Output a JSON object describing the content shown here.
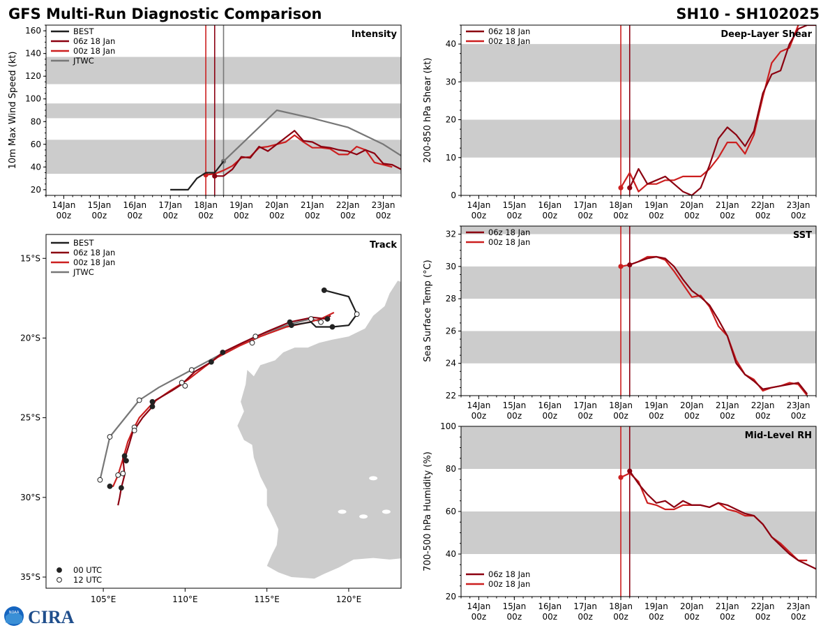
{
  "header": {
    "title": "GFS Multi-Run Diagnostic Comparison",
    "storm_id": "SH10 - SH102025"
  },
  "colors": {
    "best": "#1f1f1f",
    "run06": "#8b0010",
    "run00": "#cc1f1f",
    "jtwc": "#777777",
    "band": "#cccccc"
  },
  "time_axis": {
    "ticks": [
      "14Jan\n00z",
      "15Jan\n00z",
      "16Jan\n00z",
      "17Jan\n00z",
      "18Jan\n00z",
      "19Jan\n00z",
      "20Jan\n00z",
      "21Jan\n00z",
      "22Jan\n00z",
      "23Jan\n00z"
    ],
    "range_days": [
      -0.5,
      9.5
    ]
  },
  "logo": {
    "text": "CIRA",
    "noaa": "NOAA"
  },
  "chart_data": [
    {
      "id": "intensity",
      "type": "line",
      "title": "Intensity",
      "ylabel": "10m Max Wind Speed (kt)",
      "ylim": [
        15,
        165
      ],
      "yticks": [
        20,
        40,
        60,
        80,
        100,
        120,
        140,
        160
      ],
      "bands": [
        [
          34,
          64
        ],
        [
          83,
          96
        ],
        [
          113,
          137
        ]
      ],
      "vlines": [
        {
          "x": 4.0,
          "series": "00z 18 Jan"
        },
        {
          "x": 4.25,
          "series": "06z 18 Jan"
        },
        {
          "x": 4.5,
          "series": "JTWC"
        }
      ],
      "legend": [
        "BEST",
        "06z 18 Jan",
        "00z 18 Jan",
        "JTWC"
      ],
      "series": [
        {
          "name": "BEST",
          "color": "best",
          "x": [
            3,
            3.25,
            3.5,
            3.75,
            4,
            4.25,
            4.5
          ],
          "y": [
            20,
            20,
            20,
            30,
            35,
            35,
            45
          ]
        },
        {
          "name": "06z 18 Jan",
          "color": "run06",
          "x": [
            4.25,
            4.5,
            4.75,
            5,
            5.25,
            5.5,
            5.75,
            6,
            6.25,
            6.5,
            6.75,
            7,
            7.25,
            7.5,
            7.75,
            8,
            8.25,
            8.5,
            8.75,
            9,
            9.25,
            9.5
          ],
          "y": [
            32,
            32,
            38,
            49,
            48,
            58,
            54,
            60,
            66,
            72,
            63,
            62,
            58,
            57,
            55,
            54,
            51,
            55,
            52,
            43,
            42,
            38
          ],
          "marker0": true
        },
        {
          "name": "00z 18 Jan",
          "color": "run00",
          "x": [
            4,
            4.25,
            4.5,
            4.75,
            5,
            5.25,
            5.5,
            5.75,
            6,
            6.25,
            6.5,
            6.75,
            7,
            7.25,
            7.5,
            7.75,
            8,
            8.25,
            8.5,
            8.75,
            9,
            9.25
          ],
          "y": [
            33,
            34,
            37,
            41,
            48,
            49,
            57,
            58,
            60,
            62,
            68,
            62,
            57,
            57,
            56,
            51,
            51,
            58,
            55,
            44,
            42,
            40
          ],
          "marker0": true
        },
        {
          "name": "JTWC",
          "color": "jtwc",
          "x": [
            4.5,
            5,
            6,
            7,
            8,
            9,
            9.5
          ],
          "y": [
            45,
            60,
            90,
            83,
            75,
            60,
            50
          ],
          "marker0": true
        }
      ]
    },
    {
      "id": "shear",
      "type": "line",
      "title": "Deep-Layer Shear",
      "ylabel": "200-850 hPa Shear (kt)",
      "ylim": [
        0,
        45
      ],
      "yticks": [
        0,
        10,
        20,
        30,
        40
      ],
      "bands": [
        [
          10,
          20
        ],
        [
          30,
          40
        ]
      ],
      "vlines": [
        {
          "x": 4.0,
          "series": "00z 18 Jan"
        },
        {
          "x": 4.25,
          "series": "06z 18 Jan"
        }
      ],
      "legend": [
        "06z 18 Jan",
        "00z 18 Jan"
      ],
      "series": [
        {
          "name": "06z 18 Jan",
          "color": "run06",
          "x": [
            4.25,
            4.5,
            4.75,
            5,
            5.25,
            5.5,
            5.75,
            6,
            6.25,
            6.5,
            6.75,
            7,
            7.25,
            7.5,
            7.75,
            8,
            8.25,
            8.5,
            8.75,
            9,
            9.25,
            9.5
          ],
          "y": [
            2,
            7,
            3,
            4,
            5,
            3,
            1,
            0,
            2,
            8,
            15,
            18,
            16,
            13,
            17,
            27,
            32,
            33,
            40,
            44,
            45,
            45
          ],
          "marker0": true
        },
        {
          "name": "00z 18 Jan",
          "color": "run00",
          "x": [
            4,
            4.25,
            4.5,
            4.75,
            5,
            5.25,
            5.5,
            5.75,
            6,
            6.25,
            6.5,
            6.75,
            7,
            7.25,
            7.5,
            7.75,
            8,
            8.25,
            8.5,
            8.75,
            9,
            9.25
          ],
          "y": [
            2,
            6,
            1,
            3,
            3,
            4,
            4,
            5,
            5,
            5,
            7,
            10,
            14,
            14,
            11,
            16,
            26,
            35,
            38,
            39,
            45,
            47
          ],
          "marker0": true
        }
      ]
    },
    {
      "id": "sst",
      "type": "line",
      "title": "SST",
      "ylabel": "Sea Surface Temp (°C)",
      "ylim": [
        22,
        32.5
      ],
      "yticks": [
        22,
        24,
        26,
        28,
        30,
        32
      ],
      "bands": [
        [
          24,
          26
        ],
        [
          28,
          30
        ],
        [
          32,
          34
        ]
      ],
      "vlines": [
        {
          "x": 4.0,
          "series": "00z 18 Jan"
        },
        {
          "x": 4.25,
          "series": "06z 18 Jan"
        }
      ],
      "legend": [
        "06z 18 Jan",
        "00z 18 Jan"
      ],
      "series": [
        {
          "name": "06z 18 Jan",
          "color": "run06",
          "x": [
            4.25,
            4.5,
            4.75,
            5,
            5.25,
            5.5,
            5.75,
            6,
            6.25,
            6.5,
            6.75,
            7,
            7.25,
            7.5,
            7.75,
            8,
            8.25,
            8.5,
            8.75,
            9,
            9.25
          ],
          "y": [
            30.1,
            30.3,
            30.5,
            30.6,
            30.5,
            30.0,
            29.2,
            28.5,
            28.1,
            27.6,
            26.7,
            25.7,
            24.0,
            23.3,
            22.9,
            22.4,
            22.5,
            22.6,
            22.7,
            22.8,
            22.1
          ],
          "marker0": true
        },
        {
          "name": "00z 18 Jan",
          "color": "run00",
          "x": [
            4,
            4.25,
            4.5,
            4.75,
            5,
            5.25,
            5.5,
            5.75,
            6,
            6.25,
            6.5,
            6.75,
            7,
            7.25,
            7.5,
            7.75,
            8,
            8.25,
            8.5,
            8.75,
            9,
            9.25
          ],
          "y": [
            30.0,
            30.1,
            30.3,
            30.6,
            30.6,
            30.4,
            29.7,
            28.9,
            28.1,
            28.2,
            27.5,
            26.3,
            25.7,
            24.2,
            23.3,
            23.0,
            22.3,
            22.5,
            22.6,
            22.8,
            22.7,
            22.0
          ],
          "marker0": true
        }
      ]
    },
    {
      "id": "rh",
      "type": "line",
      "title": "Mid-Level RH",
      "ylabel": "700-500 hPa Humidity (%)",
      "ylim": [
        20,
        100
      ],
      "yticks": [
        20,
        40,
        60,
        80,
        100
      ],
      "bands": [
        [
          40,
          60
        ],
        [
          80,
          100
        ]
      ],
      "vlines": [
        {
          "x": 4.0,
          "series": "00z 18 Jan"
        },
        {
          "x": 4.25,
          "series": "06z 18 Jan"
        }
      ],
      "legend": [
        "06z 18 Jan",
        "00z 18 Jan"
      ],
      "series": [
        {
          "name": "06z 18 Jan",
          "color": "run06",
          "x": [
            4.25,
            4.5,
            4.75,
            5,
            5.25,
            5.5,
            5.75,
            6,
            6.25,
            6.5,
            6.75,
            7,
            7.25,
            7.5,
            7.75,
            8,
            8.25,
            8.5,
            8.75,
            9,
            9.25,
            9.5
          ],
          "y": [
            79,
            73,
            68,
            64,
            65,
            62,
            65,
            63,
            63,
            62,
            64,
            63,
            61,
            59,
            58,
            54,
            48,
            44,
            40,
            37,
            35,
            33
          ],
          "marker0": true
        },
        {
          "name": "00z 18 Jan",
          "color": "run00",
          "x": [
            4,
            4.25,
            4.5,
            4.75,
            5,
            5.25,
            5.5,
            5.75,
            6,
            6.25,
            6.5,
            6.75,
            7,
            7.25,
            7.5,
            7.75,
            8,
            8.25,
            8.5,
            8.75,
            9,
            9.25
          ],
          "y": [
            76,
            78,
            74,
            64,
            63,
            61,
            61,
            63,
            63,
            63,
            62,
            64,
            61,
            60,
            58,
            58,
            54,
            48,
            45,
            41,
            37,
            37
          ],
          "marker0": true
        }
      ]
    },
    {
      "id": "track",
      "type": "scatter",
      "title": "Track",
      "xlim": [
        101.5,
        123.2
      ],
      "ylim": [
        -35.7,
        -13.5
      ],
      "xticks": [
        105,
        110,
        115,
        120
      ],
      "xticklabels": [
        "105°E",
        "110°E",
        "115°E",
        "120°E"
      ],
      "yticks": [
        -15,
        -20,
        -25,
        -30,
        -35
      ],
      "yticklabels": [
        "15°S",
        "20°S",
        "25°S",
        "30°S",
        "35°S"
      ],
      "legend": [
        "BEST",
        "06z 18 Jan",
        "00z 18 Jan",
        "JTWC"
      ],
      "marker_legend": [
        "00 UTC",
        "12 UTC"
      ],
      "series": [
        {
          "name": "BEST",
          "color": "best",
          "lon": [
            118.5,
            120,
            120.5,
            120,
            119,
            118,
            117.7,
            116.5
          ],
          "lat": [
            -17.0,
            -17.4,
            -18.5,
            -19.2,
            -19.3,
            -19.3,
            -19.0,
            -19.2
          ],
          "open": [
            false,
            false,
            true,
            false,
            false,
            false,
            false,
            false
          ]
        },
        {
          "name": "06z 18 Jan",
          "color": "run06",
          "lon": [
            118.9,
            118.6,
            117.8,
            116.4,
            115,
            113.5,
            112.3,
            111.6,
            110.6,
            109.8,
            109.2,
            108.2,
            108,
            107.4,
            106.8,
            106.6,
            106.3,
            106.2,
            106.3,
            106.1,
            106.0,
            105.9
          ],
          "lat": [
            -18.6,
            -18.8,
            -18.7,
            -19.0,
            -19.6,
            -20.3,
            -20.9,
            -21.5,
            -22.1,
            -22.9,
            -23.3,
            -23.9,
            -24.3,
            -25.0,
            -25.9,
            -26.6,
            -27.6,
            -27.5,
            -28.6,
            -29.4,
            -30.0,
            -30.5
          ],
          "open": [
            false,
            false,
            false,
            false,
            false,
            false,
            false,
            false,
            false,
            false,
            false,
            false,
            false,
            false,
            false,
            false,
            false,
            false,
            false,
            false,
            false,
            false
          ]
        },
        {
          "name": "00z 18 Jan",
          "color": "run00",
          "lon": [
            119.1,
            118.3,
            117.6,
            116.2,
            114.6,
            113.3,
            112.0,
            111.2,
            110.2,
            109.1,
            108.1,
            107.2,
            106.8,
            106.5,
            106.2,
            105.9,
            105.6,
            105.3
          ],
          "lat": [
            -18.4,
            -18.8,
            -19.0,
            -19.3,
            -19.9,
            -20.5,
            -21.2,
            -21.8,
            -22.6,
            -23.3,
            -24.0,
            -25.0,
            -25.8,
            -26.5,
            -27.6,
            -28.6,
            -29.3,
            -29.3
          ],
          "open": [
            false,
            false,
            false,
            false,
            false,
            false,
            false,
            false,
            false,
            false,
            false,
            false,
            false,
            false,
            false,
            false,
            false,
            false
          ]
        },
        {
          "name": "JTWC",
          "color": "jtwc",
          "lon": [
            118.4,
            117.7,
            116.5,
            114.3,
            112.4,
            110.4,
            108.4,
            107.2,
            105.4,
            104.8
          ],
          "lat": [
            -19.0,
            -18.8,
            -19.1,
            -19.9,
            -20.9,
            -22.0,
            -23.1,
            -23.9,
            -26.2,
            -28.9
          ],
          "open": [
            true,
            true,
            false,
            true,
            false,
            true,
            false,
            true,
            true,
            true
          ]
        }
      ],
      "markers": [
        {
          "lon": 118.5,
          "lat": -17.0,
          "open": false
        },
        {
          "lon": 120.5,
          "lat": -18.5,
          "open": true
        },
        {
          "lon": 119.0,
          "lat": -19.3,
          "open": false
        },
        {
          "lon": 117.7,
          "lat": -18.8,
          "open": true
        },
        {
          "lon": 116.5,
          "lat": -19.2,
          "open": false
        },
        {
          "lon": 116.4,
          "lat": -19.0,
          "open": false
        },
        {
          "lon": 118.3,
          "lat": -19.0,
          "open": true
        },
        {
          "lon": 118.7,
          "lat": -18.8,
          "open": false
        },
        {
          "lon": 114.3,
          "lat": -19.9,
          "open": true
        },
        {
          "lon": 114.1,
          "lat": -20.3,
          "open": true
        },
        {
          "lon": 112.3,
          "lat": -20.9,
          "open": false
        },
        {
          "lon": 111.6,
          "lat": -21.5,
          "open": false
        },
        {
          "lon": 110.4,
          "lat": -22.0,
          "open": true
        },
        {
          "lon": 109.8,
          "lat": -22.8,
          "open": true
        },
        {
          "lon": 110.0,
          "lat": -23.0,
          "open": true
        },
        {
          "lon": 108.0,
          "lat": -24.0,
          "open": false
        },
        {
          "lon": 108.0,
          "lat": -24.3,
          "open": false
        },
        {
          "lon": 107.2,
          "lat": -23.9,
          "open": true
        },
        {
          "lon": 106.9,
          "lat": -25.6,
          "open": true
        },
        {
          "lon": 106.9,
          "lat": -25.8,
          "open": true
        },
        {
          "lon": 105.4,
          "lat": -26.2,
          "open": true
        },
        {
          "lon": 106.3,
          "lat": -27.4,
          "open": false
        },
        {
          "lon": 106.4,
          "lat": -27.7,
          "open": false
        },
        {
          "lon": 106.2,
          "lat": -28.5,
          "open": true
        },
        {
          "lon": 105.9,
          "lat": -28.6,
          "open": true
        },
        {
          "lon": 104.8,
          "lat": -28.9,
          "open": true
        },
        {
          "lon": 105.4,
          "lat": -29.3,
          "open": false
        },
        {
          "lon": 106.1,
          "lat": -29.4,
          "open": false
        }
      ]
    }
  ]
}
